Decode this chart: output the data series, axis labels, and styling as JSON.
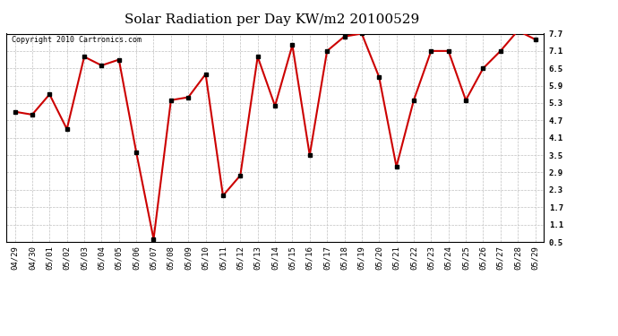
{
  "title": "Solar Radiation per Day KW/m2 20100529",
  "copyright_text": "Copyright 2010 Cartronics.com",
  "dates": [
    "04/29",
    "04/30",
    "05/01",
    "05/02",
    "05/03",
    "05/04",
    "05/05",
    "05/06",
    "05/07",
    "05/08",
    "05/09",
    "05/10",
    "05/11",
    "05/12",
    "05/13",
    "05/14",
    "05/15",
    "05/16",
    "05/17",
    "05/18",
    "05/19",
    "05/20",
    "05/21",
    "05/22",
    "05/23",
    "05/24",
    "05/25",
    "05/26",
    "05/27",
    "05/28",
    "05/29"
  ],
  "values": [
    5.0,
    4.9,
    5.6,
    4.4,
    6.9,
    6.6,
    6.8,
    3.6,
    0.6,
    5.4,
    5.5,
    6.3,
    2.1,
    2.8,
    6.9,
    5.2,
    7.3,
    3.5,
    7.1,
    7.6,
    7.7,
    6.2,
    3.1,
    5.4,
    7.1,
    7.1,
    5.4,
    6.5,
    7.1,
    7.8,
    7.5
  ],
  "line_color": "#cc0000",
  "marker": "s",
  "marker_color": "#000000",
  "marker_size": 3,
  "line_width": 1.5,
  "bg_color": "#ffffff",
  "plot_bg_color": "#ffffff",
  "grid_color": "#c0c0c0",
  "ylim": [
    0.5,
    7.7
  ],
  "yticks": [
    0.5,
    1.1,
    1.7,
    2.3,
    2.9,
    3.5,
    4.1,
    4.7,
    5.3,
    5.9,
    6.5,
    7.1,
    7.7
  ],
  "title_fontsize": 11,
  "tick_fontsize": 6.5,
  "copyright_fontsize": 6
}
